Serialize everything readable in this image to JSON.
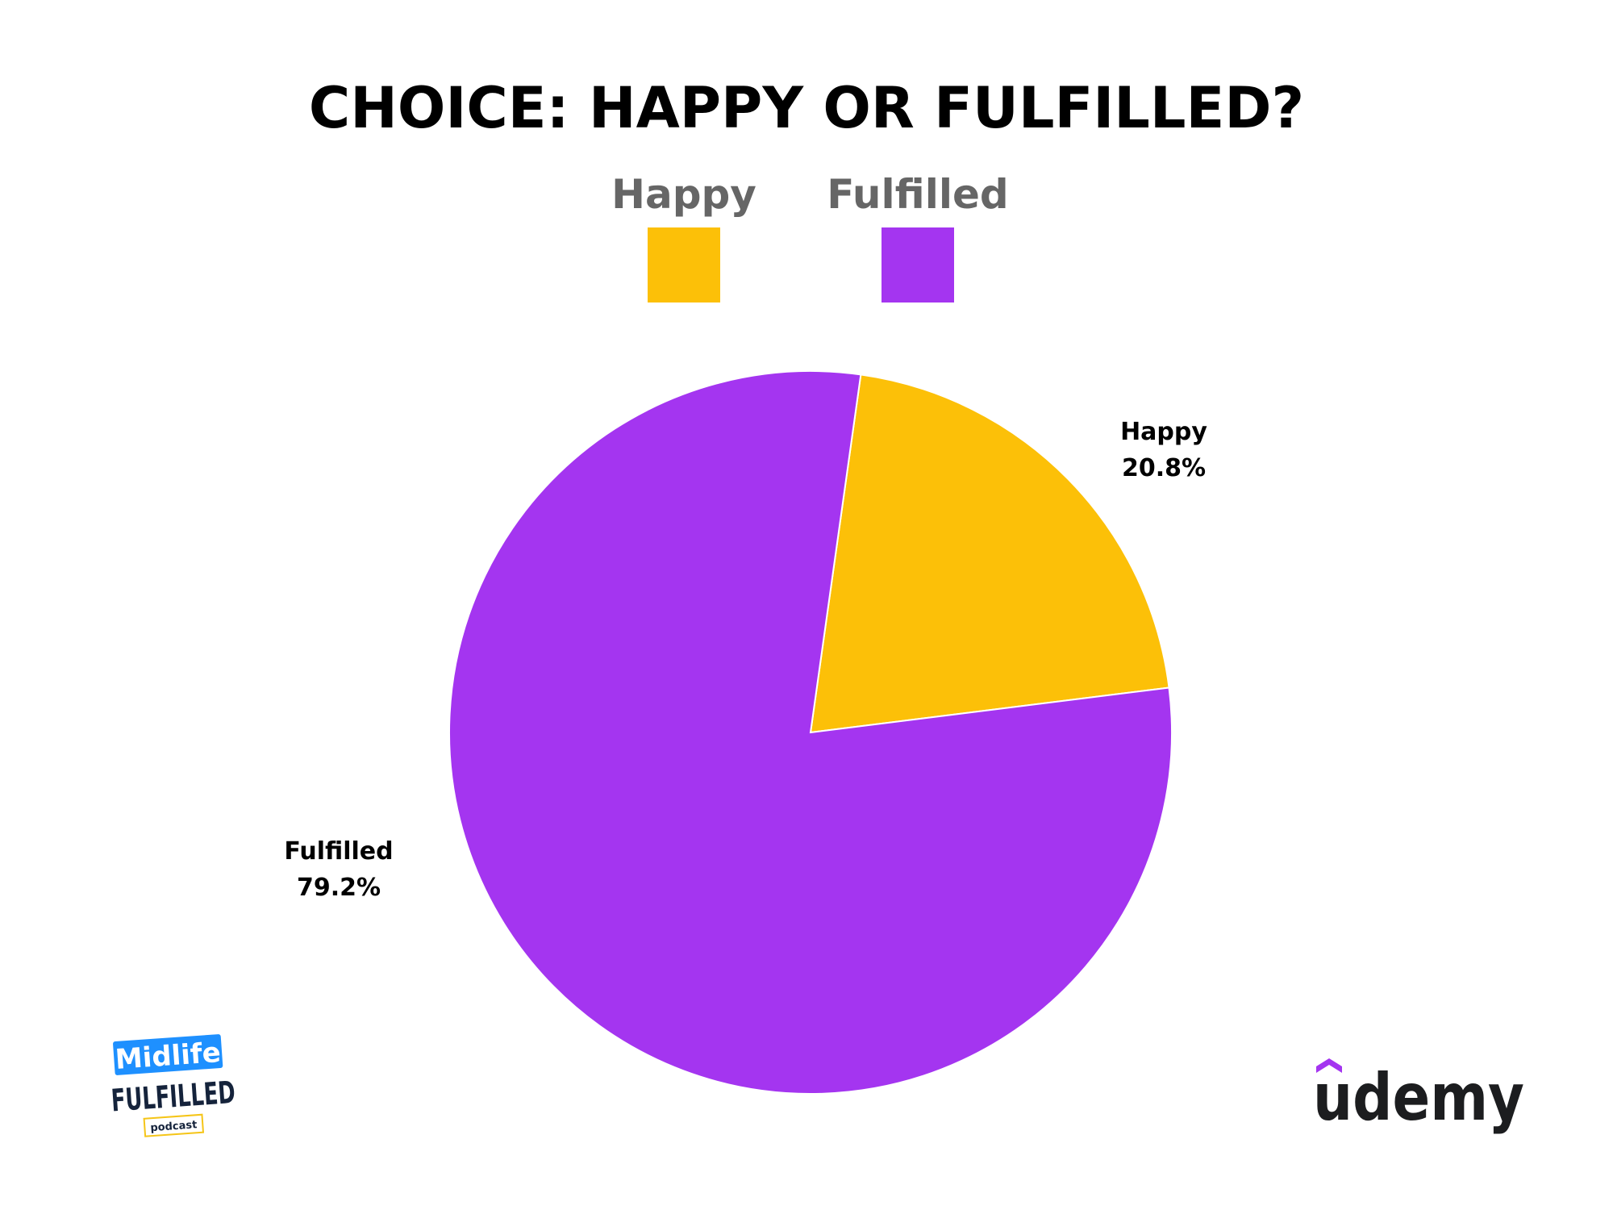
{
  "chart_data": {
    "type": "pie",
    "title": "CHOICE: HAPPY OR FULFILLED?",
    "legend_position": "top-center",
    "slices": [
      {
        "name": "Happy",
        "value": 20.8,
        "label": "20.8%",
        "color": "#FCC008"
      },
      {
        "name": "Fulfilled",
        "value": 79.2,
        "label": "79.2%",
        "color": "#A435F0"
      }
    ]
  },
  "logos": {
    "midlife": {
      "line1": "Midlife",
      "line2": "FULFILLED",
      "line3": "podcast",
      "color_blue": "#1E90FF",
      "color_navy": "#15233B",
      "color_gold": "#F5C518"
    },
    "udemy": {
      "wordmark": "udemy",
      "color_text": "#1C1D1F",
      "color_mark": "#A435F0"
    }
  }
}
